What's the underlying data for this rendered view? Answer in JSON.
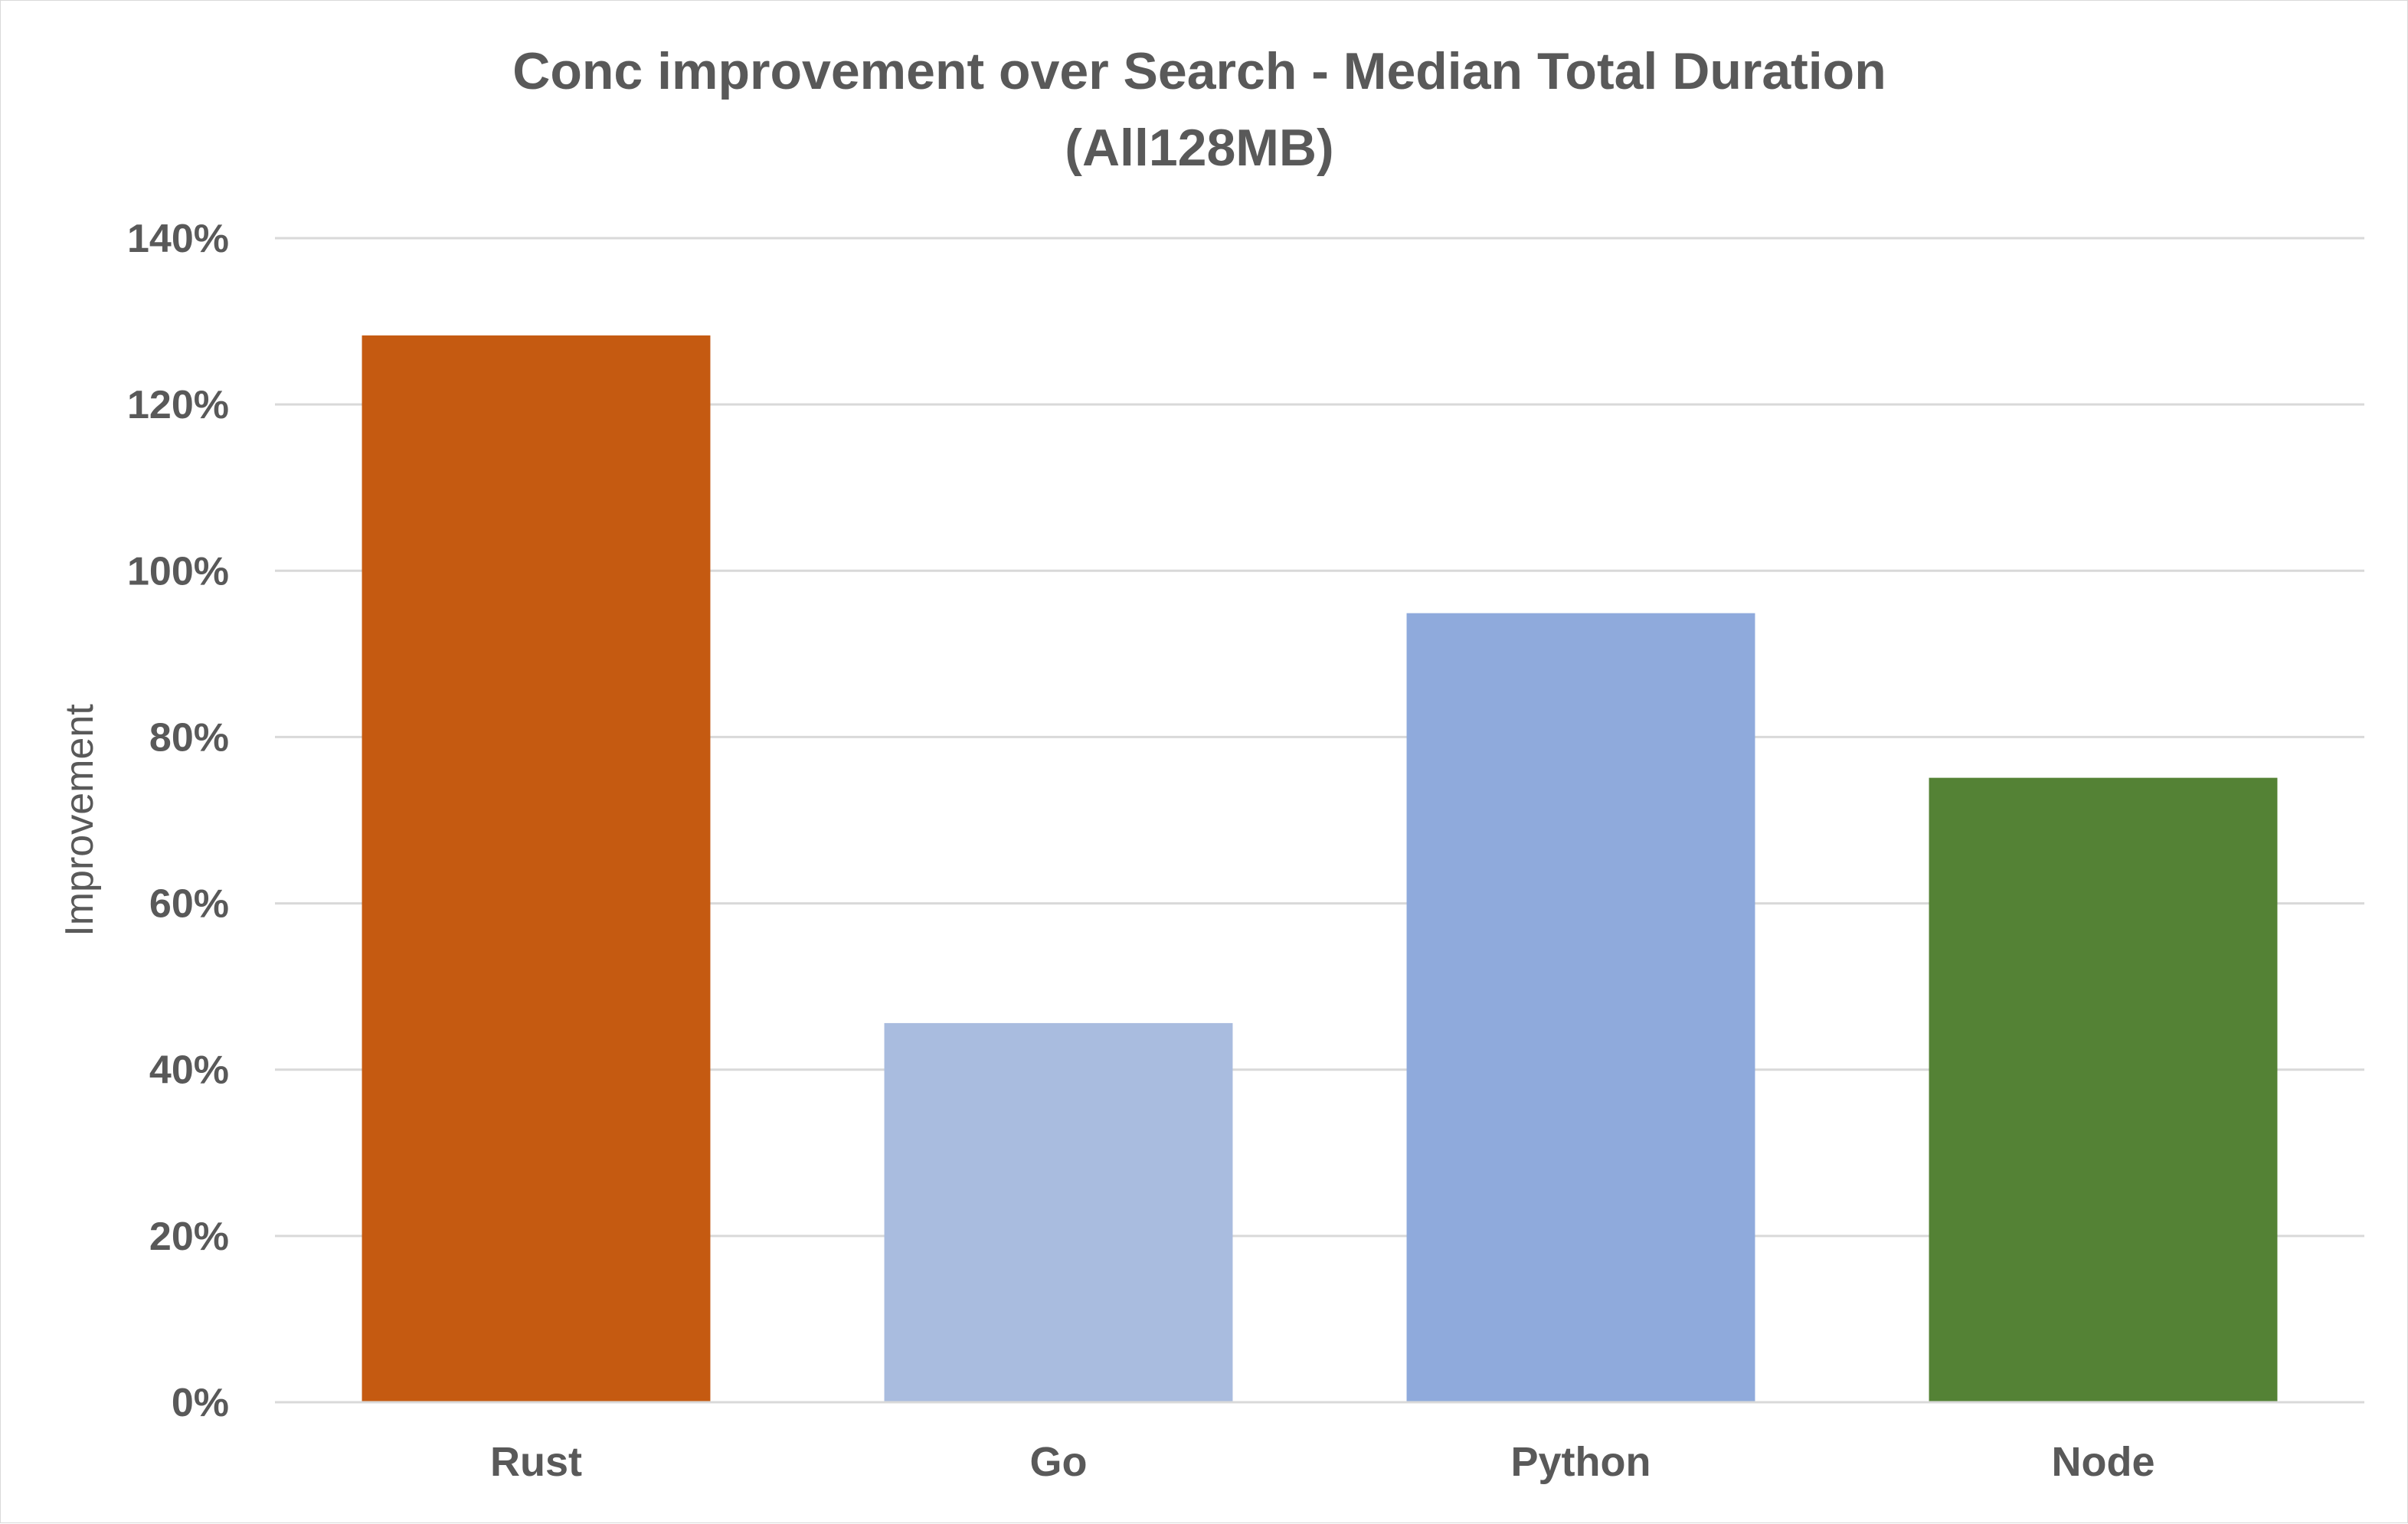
{
  "chart_data": {
    "type": "bar",
    "title_lines": [
      "Conc improvement over Search - Median Total Duration",
      "(All128MB)"
    ],
    "xlabel": "",
    "ylabel": "Improvement",
    "categories": [
      "Rust",
      "Go",
      "Python",
      "Node"
    ],
    "values": [
      128.3,
      45.6,
      94.9,
      75.1
    ],
    "unit": "%",
    "ylim": [
      0,
      140
    ],
    "yticks": [
      0,
      20,
      40,
      60,
      80,
      100,
      120,
      140
    ],
    "ytick_labels": [
      "0%",
      "20%",
      "40%",
      "60%",
      "80%",
      "100%",
      "120%",
      "140%"
    ],
    "colors": [
      "#c55a11",
      "#a9bcdf",
      "#8faadc",
      "#548235"
    ],
    "grid": true,
    "legend": "none"
  }
}
